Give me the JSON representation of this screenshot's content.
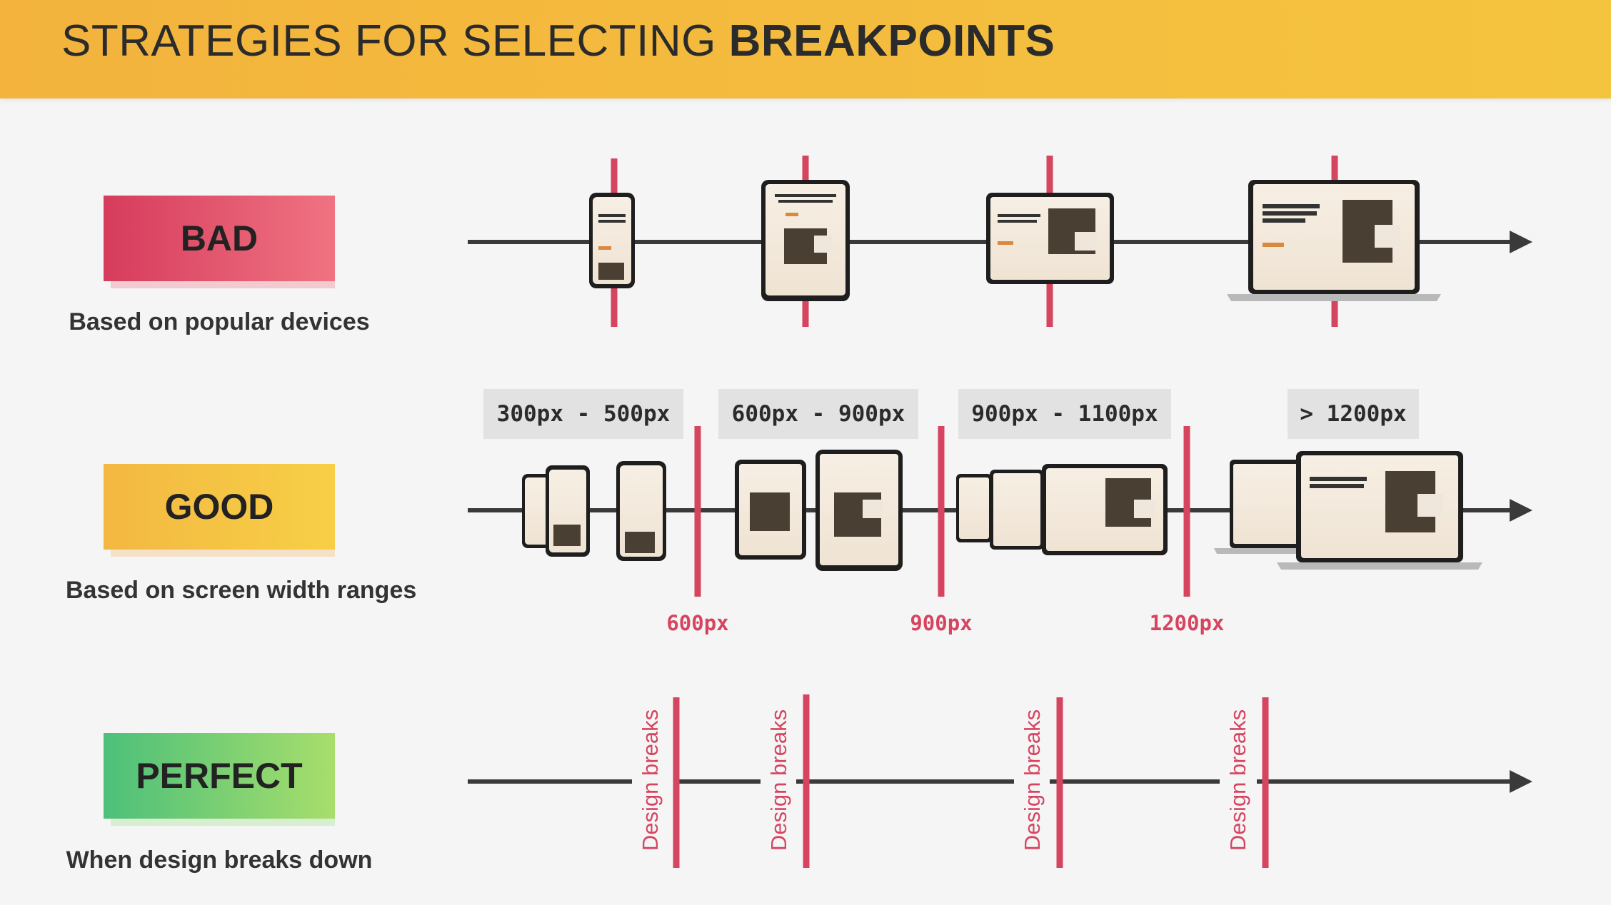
{
  "header": {
    "title_normal": "STRATEGIES FOR SELECTING",
    "title_bold": "BREAKPOINTS"
  },
  "rows": {
    "bad": {
      "label": "BAD",
      "caption": "Based on popular devices"
    },
    "good": {
      "label": "GOOD",
      "caption": "Based on screen width ranges",
      "ranges": [
        "300px - 500px",
        "600px - 900px",
        "900px - 1100px",
        "> 1200px"
      ],
      "breakpoints": [
        "600px",
        "900px",
        "1200px"
      ]
    },
    "perfect": {
      "label": "PERFECT",
      "caption": "When design breaks down",
      "break_label": "Design breaks"
    }
  },
  "colors": {
    "accent_red": "#d64560",
    "axis": "#3a3a3a",
    "header": "#f4bb3e",
    "bad": "#e0536e",
    "good": "#f5c444",
    "perfect": "#7ccf74"
  }
}
